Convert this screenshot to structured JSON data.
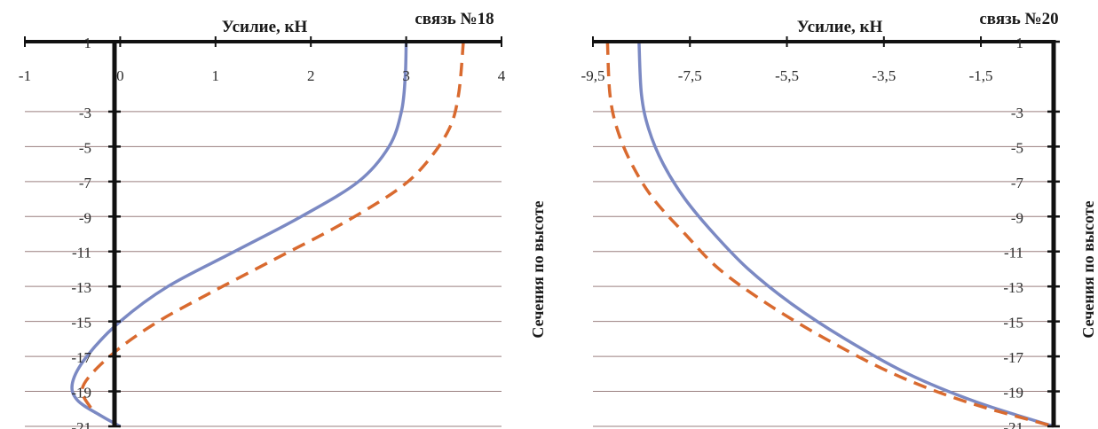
{
  "chart_data": [
    {
      "type": "line",
      "title": "связь №18",
      "xlabel": "Усилие, кН",
      "ylabel": "Сечения по высоте",
      "xlim": [
        -1,
        4
      ],
      "ylim": [
        -21,
        1
      ],
      "x_ticks": [
        "-1",
        "0",
        "1",
        "2",
        "3",
        "4"
      ],
      "y_ticks": [
        "1",
        "-3",
        "-5",
        "-7",
        "-9",
        "-11",
        "-13",
        "-15",
        "-17",
        "-19",
        "-21"
      ],
      "grid": "horizontal",
      "x_axis_position": "top",
      "series": [
        {
          "style": "solid",
          "color": "#7b89c3",
          "points": [
            {
              "x": 3.0,
              "y": 1
            },
            {
              "x": 2.99,
              "y": -1
            },
            {
              "x": 2.95,
              "y": -3
            },
            {
              "x": 2.82,
              "y": -5
            },
            {
              "x": 2.5,
              "y": -7
            },
            {
              "x": 1.9,
              "y": -9
            },
            {
              "x": 1.2,
              "y": -11
            },
            {
              "x": 0.5,
              "y": -13
            },
            {
              "x": 0.0,
              "y": -15
            },
            {
              "x": -0.35,
              "y": -17
            },
            {
              "x": -0.5,
              "y": -18.5
            },
            {
              "x": -0.45,
              "y": -19.5
            },
            {
              "x": -0.2,
              "y": -20.4
            },
            {
              "x": 0.0,
              "y": -21
            }
          ]
        },
        {
          "style": "dashed",
          "color": "#d96a2f",
          "points": [
            {
              "x": 3.6,
              "y": 1
            },
            {
              "x": 3.55,
              "y": -2
            },
            {
              "x": 3.45,
              "y": -4
            },
            {
              "x": 3.2,
              "y": -6
            },
            {
              "x": 2.9,
              "y": -7.5
            },
            {
              "x": 2.3,
              "y": -9.5
            },
            {
              "x": 1.6,
              "y": -11.5
            },
            {
              "x": 0.9,
              "y": -13.5
            },
            {
              "x": 0.4,
              "y": -15
            },
            {
              "x": 0.0,
              "y": -16.5
            },
            {
              "x": -0.3,
              "y": -18
            },
            {
              "x": -0.4,
              "y": -19
            },
            {
              "x": -0.3,
              "y": -20
            }
          ]
        }
      ]
    },
    {
      "type": "line",
      "title": "связь №20",
      "xlabel": "Усилие, кН",
      "ylabel": "Сечения по высоте",
      "xlim": [
        -9.5,
        0
      ],
      "ylim": [
        -21,
        1
      ],
      "x_ticks": [
        "-9,5",
        "-7,5",
        "-5,5",
        "-3,5",
        "-1,5"
      ],
      "y_ticks": [
        "1",
        "-3",
        "-5",
        "-7",
        "-9",
        "-11",
        "-13",
        "-15",
        "-17",
        "-19",
        "-21"
      ],
      "grid": "horizontal",
      "x_axis_position": "top",
      "series": [
        {
          "style": "solid",
          "color": "#7b89c3",
          "points": [
            {
              "x": -8.55,
              "y": 1
            },
            {
              "x": -8.5,
              "y": -2
            },
            {
              "x": -8.35,
              "y": -4
            },
            {
              "x": -8.05,
              "y": -6
            },
            {
              "x": -7.6,
              "y": -8
            },
            {
              "x": -7.0,
              "y": -10
            },
            {
              "x": -6.3,
              "y": -12
            },
            {
              "x": -5.4,
              "y": -14
            },
            {
              "x": -4.3,
              "y": -16
            },
            {
              "x": -3.0,
              "y": -18
            },
            {
              "x": -1.6,
              "y": -19.6
            },
            {
              "x": 0.0,
              "y": -21
            }
          ]
        },
        {
          "style": "dashed",
          "color": "#d96a2f",
          "points": [
            {
              "x": -9.2,
              "y": 1
            },
            {
              "x": -9.15,
              "y": -2
            },
            {
              "x": -9.0,
              "y": -4
            },
            {
              "x": -8.7,
              "y": -6
            },
            {
              "x": -8.25,
              "y": -8
            },
            {
              "x": -7.6,
              "y": -10
            },
            {
              "x": -6.9,
              "y": -12
            },
            {
              "x": -5.9,
              "y": -14
            },
            {
              "x": -4.7,
              "y": -16
            },
            {
              "x": -3.3,
              "y": -18
            },
            {
              "x": -1.8,
              "y": -19.6
            },
            {
              "x": 0.0,
              "y": -21
            }
          ]
        }
      ]
    }
  ]
}
